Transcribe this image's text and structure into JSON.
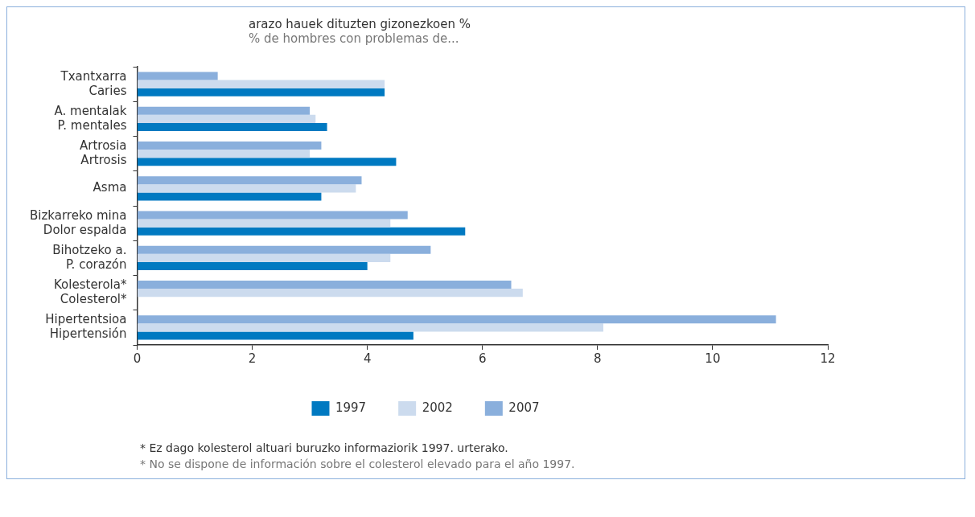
{
  "chart_data": {
    "type": "bar",
    "orientation": "horizontal",
    "title": "arazo hauek dituzten gizonezkoen %",
    "subtitle": "% de hombres con problemas de...",
    "categories": [
      "Txantxarra\nCaries",
      "A. mentalak\nP. mentales",
      "Artrosia\nArtrosis",
      "Asma",
      "Bizkarreko mina\nDolor espalda",
      "Bihotzeko a.\nP. corazón",
      "Kolesterola*\nColesterol*",
      "Hipertentsioa\nHipertensión"
    ],
    "series": [
      {
        "name": "1997",
        "color": "#0079c1",
        "values": [
          4.3,
          3.3,
          4.5,
          3.2,
          5.7,
          4.0,
          null,
          4.8
        ]
      },
      {
        "name": "2002",
        "color": "#ccdbee",
        "values": [
          4.3,
          3.1,
          3.0,
          3.8,
          4.4,
          4.4,
          6.7,
          8.1
        ]
      },
      {
        "name": "2007",
        "color": "#8aafdc",
        "values": [
          1.4,
          3.0,
          3.2,
          3.9,
          4.7,
          5.1,
          6.5,
          11.1
        ]
      }
    ],
    "xlim": [
      0,
      12
    ],
    "xticks": [
      0,
      2,
      4,
      6,
      8,
      10,
      12
    ],
    "grid": false,
    "legend": "bottom",
    "annotations": [
      "* Ez dago kolesterol altuari buruzko informaziorik 1997. urterako.",
      "* No se dispone de información sobre el colesterol elevado para el año 1997."
    ]
  }
}
